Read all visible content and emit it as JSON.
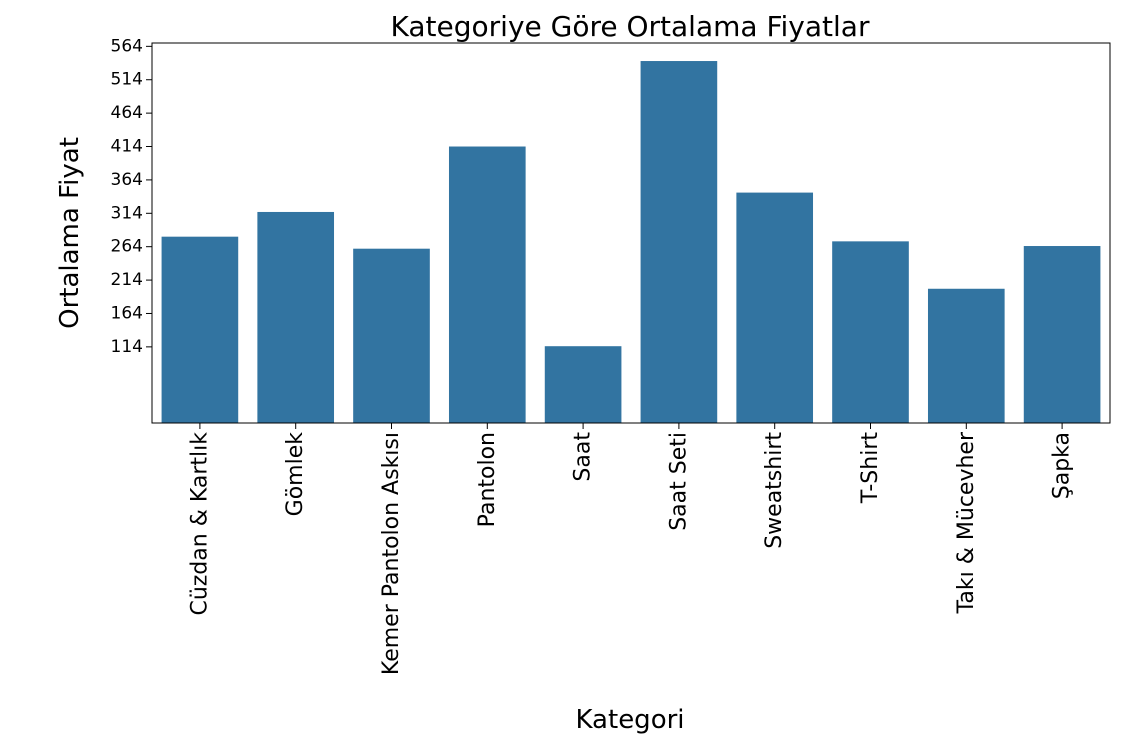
{
  "chart_data": {
    "type": "bar",
    "title": "Kategoriye Göre Ortalama Fiyatlar",
    "xlabel": "Kategori",
    "ylabel": "Ortalama Fiyat",
    "categories": [
      "Cüzdan & Kartlık",
      "Gömlek",
      "Kemer Pantolon Askısı",
      "Pantolon",
      "Saat",
      "Saat Seti",
      "Sweatshirt",
      "T-Shirt",
      "Takı & Mücevher",
      "Şapka"
    ],
    "values": [
      279,
      316,
      261,
      414,
      115,
      542,
      345,
      272,
      201,
      265
    ],
    "yticks": [
      114,
      164,
      214,
      264,
      314,
      364,
      414,
      464,
      514,
      564
    ],
    "ylim": [
      0,
      569
    ],
    "grid": false,
    "bar_color": "#3274a1"
  }
}
